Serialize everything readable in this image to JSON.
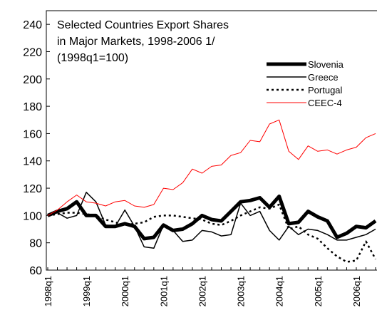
{
  "chart_data": {
    "type": "line",
    "title_lines": [
      "Selected Countries Export Shares",
      "in Major Markets, 1998-2006 1/",
      "(1998q1=100)"
    ],
    "categories": [
      "1998q1",
      null,
      null,
      null,
      "1999q1",
      null,
      null,
      null,
      "2000q1",
      null,
      null,
      null,
      "2001q1",
      null,
      null,
      null,
      "2002q1",
      null,
      null,
      null,
      "2003q1",
      null,
      null,
      null,
      "2004q1",
      null,
      null,
      null,
      "2005q1",
      null,
      null,
      null,
      "2006q1",
      null,
      null
    ],
    "series": [
      {
        "name": "Slovenia",
        "color": "#000000",
        "width": 5,
        "dash": "none",
        "values": [
          100,
          103,
          105,
          110,
          100,
          100,
          92,
          92,
          94,
          92,
          83,
          84,
          93,
          89,
          90,
          94,
          100,
          97,
          96,
          103,
          110,
          111,
          113,
          106,
          114,
          94,
          95,
          103,
          99,
          96,
          84,
          87,
          92,
          91,
          96
        ]
      },
      {
        "name": "Greece",
        "color": "#000000",
        "width": 1.5,
        "dash": "none",
        "values": [
          100,
          102,
          98,
          100,
          117,
          110,
          93,
          92,
          104,
          92,
          77,
          76,
          93,
          89,
          81,
          82,
          89,
          88,
          85,
          86,
          109,
          100,
          103,
          89,
          82,
          92,
          86,
          90,
          89,
          86,
          82,
          82,
          84,
          86,
          90
        ]
      },
      {
        "name": "Portugal",
        "color": "#000000",
        "width": 2.5,
        "dash": "3,4",
        "values": [
          100,
          101,
          102,
          102,
          101,
          100,
          97,
          95,
          93,
          94,
          95,
          99,
          100,
          100,
          99,
          98,
          97,
          94,
          93,
          96,
          100,
          103,
          106,
          105,
          108,
          90,
          92,
          86,
          83,
          76,
          70,
          66,
          67,
          81,
          68
        ]
      },
      {
        "name": "CEEC-4",
        "color": "#ff0000",
        "width": 1,
        "dash": "none",
        "values": [
          100,
          104,
          110,
          115,
          110,
          109,
          107,
          110,
          111,
          107,
          106,
          108,
          120,
          119,
          124,
          134,
          131,
          136,
          137,
          144,
          146,
          155,
          154,
          167,
          170,
          147,
          141,
          151,
          147,
          148,
          145,
          148,
          150,
          157,
          160
        ]
      }
    ],
    "ylim": [
      60,
      250
    ],
    "yticks": [
      60,
      80,
      100,
      120,
      140,
      160,
      180,
      200,
      220,
      240
    ],
    "grid": false
  }
}
